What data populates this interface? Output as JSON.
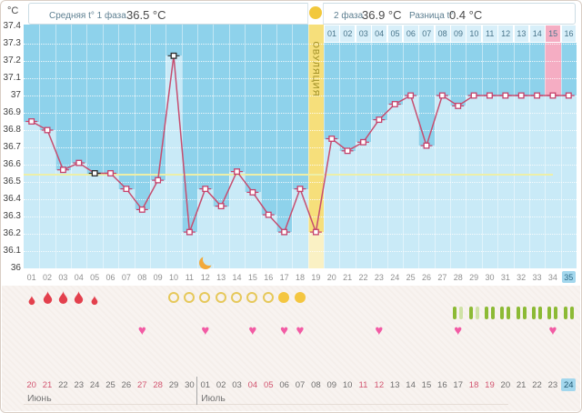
{
  "header": {
    "unit_label": "°C",
    "phase1_label": "Средняя t° 1 фаза",
    "phase1_value": "36.5 °C",
    "phase2_label": "2 фаза",
    "phase2_value": "36.9 °C",
    "diff_label": "Разница t°",
    "diff_value": "0.4 °C"
  },
  "chart_data": {
    "type": "line",
    "title": "Basal body temperature cycle chart",
    "ylabel": "°C",
    "ylim": [
      36.0,
      37.4
    ],
    "ytick_step": 0.1,
    "y_ticks": [
      "37.4",
      "37.3",
      "37.2",
      "37.1",
      "37",
      "36.9",
      "36.8",
      "36.7",
      "36.6",
      "36.5",
      "36.4",
      "36.3",
      "36.2",
      "36.1",
      "36"
    ],
    "grid": true,
    "legend_position": "none",
    "x_label_row": [
      "01",
      "02",
      "03",
      "04",
      "05",
      "06",
      "07",
      "08",
      "09",
      "10",
      "11",
      "12",
      "13",
      "14",
      "15",
      "16",
      "17",
      "18",
      "19",
      "20",
      "21",
      "22",
      "23",
      "24",
      "25",
      "26",
      "27",
      "28",
      "29",
      "30",
      "31",
      "32",
      "33",
      "34",
      "35"
    ],
    "x": [
      1,
      2,
      3,
      4,
      5,
      6,
      7,
      8,
      9,
      10,
      11,
      12,
      13,
      14,
      15,
      16,
      17,
      18,
      19,
      20,
      21,
      22,
      23,
      24,
      25,
      26,
      27,
      28,
      29,
      30,
      31,
      32,
      33,
      34,
      35
    ],
    "temperatures": [
      36.85,
      36.8,
      36.57,
      36.61,
      36.55,
      36.55,
      36.46,
      36.34,
      36.51,
      37.23,
      36.21,
      36.46,
      36.36,
      36.56,
      36.44,
      36.31,
      36.21,
      36.46,
      36.21,
      36.75,
      36.68,
      36.73,
      36.86,
      36.95,
      37.0,
      36.71,
      37.0,
      36.94,
      37.0,
      37.0,
      37.0,
      37.0,
      37.0,
      37.0,
      37.0
    ],
    "special_marker_days": [
      5,
      10
    ],
    "coverline": 36.55,
    "ovulation_day": 19,
    "ovulation_label": "ОВУЛЯЦИЯ",
    "expected_period_day": 34,
    "current_cycle_day": "35",
    "moon_day": 12,
    "dpo_header": {
      "labels": [
        "01",
        "02",
        "03",
        "04",
        "05",
        "06",
        "07",
        "08",
        "09",
        "10",
        "11",
        "12",
        "13",
        "14",
        "15",
        "16"
      ],
      "highlighted_label": "15",
      "start_day": 20
    }
  },
  "icon_rows": {
    "menstruation": [
      {
        "day": 1,
        "size": "small"
      },
      {
        "day": 2,
        "size": "big"
      },
      {
        "day": 3,
        "size": "big"
      },
      {
        "day": 4,
        "size": "big"
      },
      {
        "day": 5,
        "size": "small"
      }
    ],
    "ovulation_tests": [
      {
        "day": 10,
        "filled": false
      },
      {
        "day": 11,
        "filled": false
      },
      {
        "day": 12,
        "filled": false
      },
      {
        "day": 13,
        "filled": false
      },
      {
        "day": 14,
        "filled": false
      },
      {
        "day": 15,
        "filled": false
      },
      {
        "day": 16,
        "filled": false
      },
      {
        "day": 17,
        "filled": true
      },
      {
        "day": 18,
        "filled": true
      }
    ],
    "intercourse_days": [
      8,
      12,
      15,
      17,
      18,
      23,
      28,
      34
    ],
    "test_strips": [
      {
        "day": 28,
        "bars": [
          "dark",
          "light"
        ]
      },
      {
        "day": 29,
        "bars": [
          "dark",
          "light"
        ]
      },
      {
        "day": 30,
        "bars": [
          "dark",
          "dark"
        ]
      },
      {
        "day": 31,
        "bars": [
          "dark",
          "dark"
        ]
      },
      {
        "day": 32,
        "bars": [
          "dark",
          "dark"
        ]
      },
      {
        "day": 33,
        "bars": [
          "dark",
          "dark"
        ]
      },
      {
        "day": 34,
        "bars": [
          "dark",
          "dark"
        ]
      },
      {
        "day": 35,
        "bars": [
          "dark",
          "dark"
        ]
      }
    ]
  },
  "calendar": {
    "months": [
      {
        "name": "Июнь",
        "dates": [
          "20",
          "21",
          "22",
          "23",
          "24",
          "25",
          "26",
          "27",
          "28",
          "29",
          "30"
        ],
        "weekends": [
          "20",
          "21",
          "27",
          "28"
        ],
        "today": ""
      },
      {
        "name": "Июль",
        "dates": [
          "01",
          "02",
          "03",
          "04",
          "05",
          "06",
          "07",
          "08",
          "09",
          "10",
          "11",
          "12",
          "13",
          "14",
          "15",
          "16",
          "17",
          "18",
          "19",
          "20",
          "21",
          "22",
          "23",
          "24"
        ],
        "weekends": [
          "04",
          "05",
          "11",
          "12",
          "18",
          "19"
        ],
        "today": "24"
      }
    ]
  },
  "colors": {
    "plot_bg": "#8ED2EB",
    "column_fill": "#C9EAF7",
    "line": "#C64E70",
    "marker_stroke": "#C6416B",
    "special_marker_stroke": "#2A2A2A",
    "coverline": "#EDEFA8",
    "ovulation_band": "#F6DF7B",
    "ovulation_band_light": "#FAF1C4",
    "ovulation_circle": "#F2C83C",
    "expected_period_pink": "#F5ADC3",
    "dpo_cell_bg": "#D8EFF9",
    "current_day_bg": "#A3D7ED",
    "menstruation_red": "#E3404D",
    "test_circle_outline": "#E6C85A",
    "test_circle_filled": "#F4C640",
    "heart_pink": "#F25BA4",
    "strip_dark": "#8CBA35",
    "strip_light": "#CFE2A6",
    "moon_orange": "#F2A93B",
    "weekend_date": "#D25570",
    "normal_date": "#6F6F6F"
  }
}
